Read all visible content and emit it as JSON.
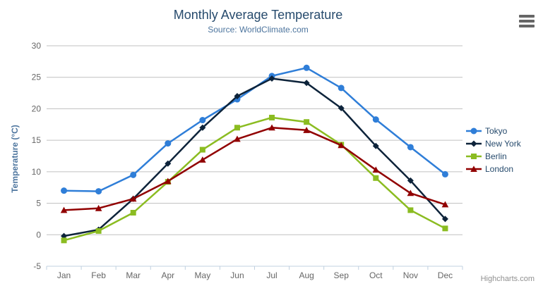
{
  "chart_data": {
    "type": "line",
    "title": "Monthly Average Temperature",
    "subtitle": "Source: WorldClimate.com",
    "xlabel": "",
    "ylabel": "Temperature (°C)",
    "categories": [
      "Jan",
      "Feb",
      "Mar",
      "Apr",
      "May",
      "Jun",
      "Jul",
      "Aug",
      "Sep",
      "Oct",
      "Nov",
      "Dec"
    ],
    "series": [
      {
        "name": "Tokyo",
        "color": "#2f7ed8",
        "marker": "circle",
        "values": [
          7.0,
          6.9,
          9.5,
          14.5,
          18.2,
          21.5,
          25.2,
          26.5,
          23.3,
          18.3,
          13.9,
          9.6
        ]
      },
      {
        "name": "New York",
        "color": "#0d233a",
        "marker": "diamond",
        "values": [
          -0.2,
          0.8,
          5.7,
          11.3,
          17.0,
          22.0,
          24.8,
          24.1,
          20.1,
          14.1,
          8.6,
          2.5
        ]
      },
      {
        "name": "Berlin",
        "color": "#8bbc21",
        "marker": "square",
        "values": [
          -0.9,
          0.6,
          3.5,
          8.4,
          13.5,
          17.0,
          18.6,
          17.9,
          14.3,
          9.0,
          3.9,
          1.0
        ]
      },
      {
        "name": "London",
        "color": "#910000",
        "marker": "triangle",
        "values": [
          3.9,
          4.2,
          5.7,
          8.5,
          11.9,
          15.2,
          17.0,
          16.6,
          14.2,
          10.3,
          6.6,
          4.8
        ]
      }
    ],
    "ylim": [
      -5,
      30
    ],
    "ytick_interval": 5,
    "ytick_labels": [
      "-5",
      "0",
      "5",
      "10",
      "15",
      "20",
      "25",
      "30"
    ],
    "grid": true,
    "legend_position": "right"
  },
  "credit": "Highcharts.com",
  "menu": {
    "icon": "hamburger-icon"
  },
  "colors": {
    "title": "#274b6d",
    "subtitle": "#4d759e",
    "axis_title": "#4d759e",
    "axis_labels": "#666666",
    "gridline": "#c0c0c0",
    "axis_line": "#c0d0e0",
    "legend_text": "#274b6d",
    "credit": "#909090",
    "menu_bars": "#666666",
    "background": "#ffffff"
  }
}
